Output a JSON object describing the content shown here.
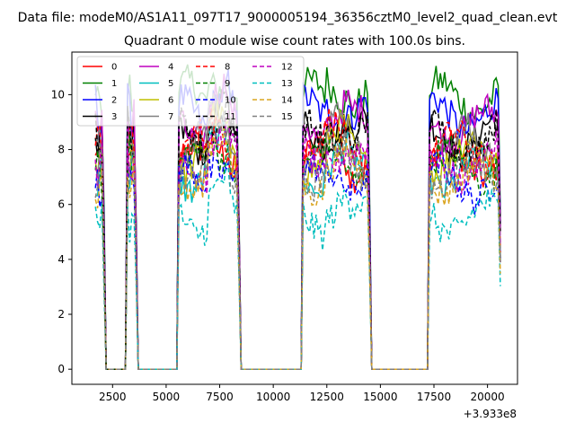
{
  "figure": {
    "suptitle": "Data file: modeM0/AS1A11_097T17_9000005194_36356cztM0_level2_quad_clean.evt",
    "offset_text": "+3.933e8"
  },
  "chart_data": {
    "type": "line",
    "title": "Quadrant 0 module wise count rates with 100.0s bins.",
    "xlabel": "",
    "ylabel": "",
    "xlim": [
      600,
      21400
    ],
    "ylim": [
      -0.55,
      11.55
    ],
    "x_offset": 393300000,
    "x_ticks": [
      2500,
      5000,
      7500,
      10000,
      12500,
      15000,
      17500,
      20000
    ],
    "x_tick_labels": [
      "2500",
      "5000",
      "7500",
      "10000",
      "12500",
      "15000",
      "17500",
      "20000"
    ],
    "y_ticks": [
      0,
      2,
      4,
      6,
      8,
      10
    ],
    "y_tick_labels": [
      "0",
      "2",
      "4",
      "6",
      "8",
      "10"
    ],
    "grid": false,
    "legend": {
      "location": "upper-left",
      "columns": 4
    },
    "bin_seconds": 100,
    "segments": [
      {
        "start": 1700,
        "end": 2100
      },
      {
        "start": 3200,
        "end": 3600
      },
      {
        "start": 5600,
        "end": 8400
      },
      {
        "start": 11400,
        "end": 14500
      },
      {
        "start": 17300,
        "end": 20600
      }
    ],
    "series": [
      {
        "name": "0",
        "color": "#ff0000",
        "style": "solid",
        "level": 7.6
      },
      {
        "name": "1",
        "color": "#008000",
        "style": "solid",
        "level": 9.9
      },
      {
        "name": "2",
        "color": "#0000ff",
        "style": "solid",
        "level": 9.3
      },
      {
        "name": "3",
        "color": "#000000",
        "style": "solid",
        "level": 8.5
      },
      {
        "name": "4",
        "color": "#bf00bf",
        "style": "solid",
        "level": 8.9
      },
      {
        "name": "5",
        "color": "#00bfbf",
        "style": "solid",
        "level": 7.1
      },
      {
        "name": "6",
        "color": "#bfbf00",
        "style": "solid",
        "level": 7.8
      },
      {
        "name": "7",
        "color": "#808080",
        "style": "solid",
        "level": 8.2
      },
      {
        "name": "8",
        "color": "#ff0000",
        "style": "dashed",
        "level": 8.0
      },
      {
        "name": "9",
        "color": "#008000",
        "style": "dashed",
        "level": 7.4
      },
      {
        "name": "10",
        "color": "#0000ff",
        "style": "dashed",
        "level": 6.8
      },
      {
        "name": "11",
        "color": "#000000",
        "style": "dashed",
        "level": 8.4
      },
      {
        "name": "12",
        "color": "#bf00bf",
        "style": "dashed",
        "level": 7.5
      },
      {
        "name": "13",
        "color": "#00bfbf",
        "style": "dashed",
        "level": 5.5
      },
      {
        "name": "14",
        "color": "#daa520",
        "style": "dashed",
        "level": 7.0
      },
      {
        "name": "15",
        "color": "#808080",
        "style": "dashed",
        "level": 7.2
      }
    ]
  }
}
